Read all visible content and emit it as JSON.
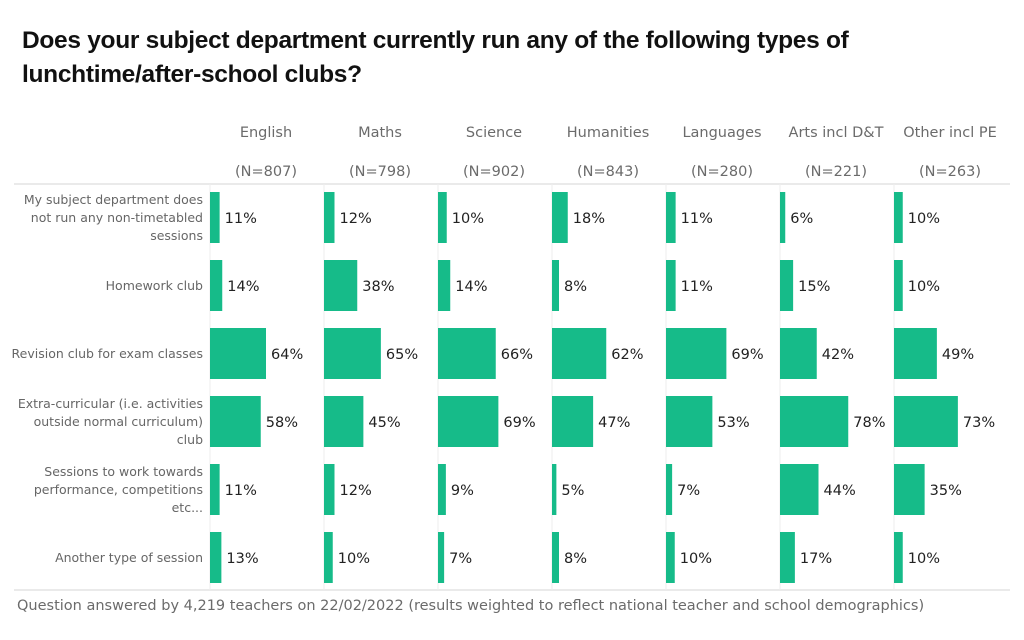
{
  "title": "Does your subject department currently run any of the following types of lunchtime/after-school clubs?",
  "footnote": "Question answered by 4,219 teachers on 22/02/2022 (results weighted to reflect national teacher and school demographics)",
  "colors": {
    "bar": "#16bb89",
    "label_text": "#666666",
    "value_text": "#222222",
    "header_text": "#6b6b6b",
    "gridline": "#e3e3e3"
  },
  "chart_data": {
    "type": "bar",
    "orientation": "horizontal",
    "layout": "small-multiples",
    "title": "Does your subject department currently run any of the following types of lunchtime/after-school clubs?",
    "xlabel": "",
    "ylabel": "",
    "unit": "%",
    "xlim": [
      0,
      100
    ],
    "grid": false,
    "legend": "none",
    "categories": [
      "My subject department does not run any non-timetabled sessions",
      "Homework club",
      "Revision club for exam classes",
      "Extra-curricular (i.e. activities outside normal curriculum) club",
      "Sessions to work towards performance, competitions etc...",
      "Another type of session"
    ],
    "category_lines": [
      [
        "My subject department does",
        "not run any non-timetabled",
        "sessions"
      ],
      [
        "Homework club"
      ],
      [
        "Revision club for exam classes"
      ],
      [
        "Extra-curricular (i.e. activities",
        "outside normal curriculum)",
        "club"
      ],
      [
        "Sessions to work towards",
        "performance, competitions",
        "etc..."
      ],
      [
        "Another type of session"
      ]
    ],
    "series": [
      {
        "name": "English",
        "n_label": "(N=807)",
        "values": [
          11,
          14,
          64,
          58,
          11,
          13
        ]
      },
      {
        "name": "Maths",
        "n_label": "(N=798)",
        "values": [
          12,
          38,
          65,
          45,
          12,
          10
        ]
      },
      {
        "name": "Science",
        "n_label": "(N=902)",
        "values": [
          10,
          14,
          66,
          69,
          9,
          7
        ]
      },
      {
        "name": "Humanities",
        "n_label": "(N=843)",
        "values": [
          18,
          8,
          62,
          47,
          5,
          8
        ]
      },
      {
        "name": "Languages",
        "n_label": "(N=280)",
        "values": [
          11,
          11,
          69,
          53,
          7,
          10
        ]
      },
      {
        "name": "Arts incl D&T",
        "n_label": "(N=221)",
        "values": [
          6,
          15,
          42,
          78,
          44,
          17
        ]
      },
      {
        "name": "Other incl PE",
        "n_label": "(N=263)",
        "values": [
          10,
          10,
          49,
          73,
          35,
          10
        ]
      }
    ]
  }
}
